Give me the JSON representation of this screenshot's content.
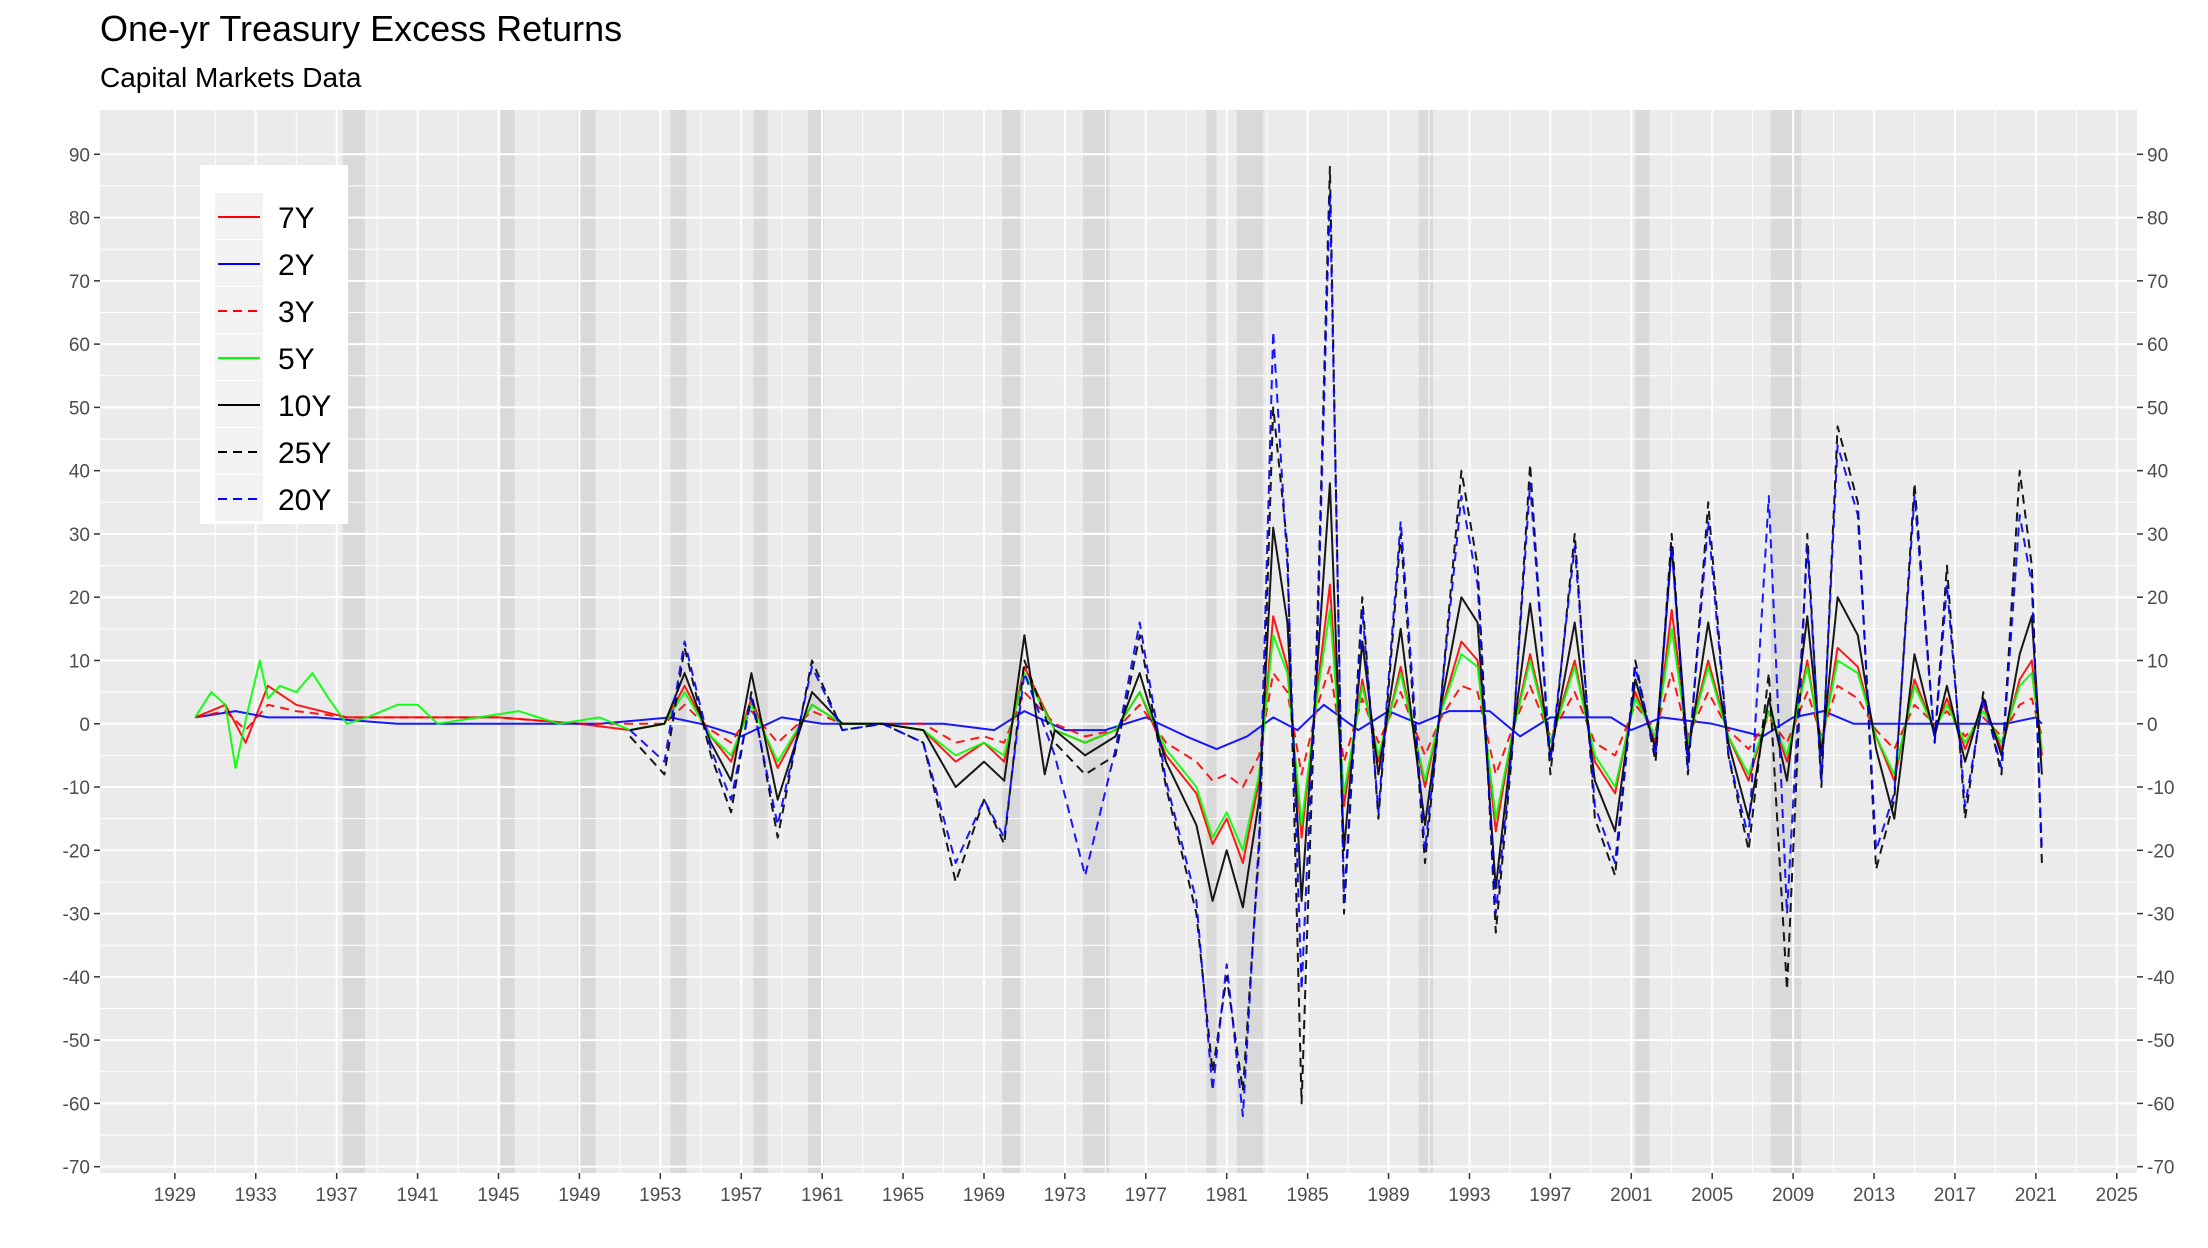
{
  "chart_data": {
    "type": "line",
    "title": "One-yr Treasury Excess Returns",
    "subtitle": "Capital Markets Data",
    "xlabel": "",
    "ylabel": "",
    "x_ticks": [
      "1929",
      "1933",
      "1937",
      "1941",
      "1945",
      "1949",
      "1953",
      "1957",
      "1961",
      "1965",
      "1969",
      "1973",
      "1977",
      "1981",
      "1985",
      "1989",
      "1993",
      "1997",
      "2001",
      "2005",
      "2009",
      "2013",
      "2017",
      "2021",
      "2025"
    ],
    "xlim": [
      1925.3,
      2026.0
    ],
    "y_ticks": [
      -70,
      -60,
      -50,
      -40,
      -30,
      -20,
      -10,
      0,
      10,
      20,
      30,
      40,
      50,
      60,
      70,
      80,
      90
    ],
    "ylim": [
      -71,
      97
    ],
    "grid": true,
    "secondary_y_axis": true,
    "legend_position": "top-left",
    "recession_shading": [
      [
        1937.3,
        1938.4
      ],
      [
        1945.1,
        1945.8
      ],
      [
        1948.9,
        1949.8
      ],
      [
        1953.5,
        1954.3
      ],
      [
        1957.6,
        1958.3
      ],
      [
        1960.3,
        1961.1
      ],
      [
        1969.9,
        1970.8
      ],
      [
        1973.9,
        1975.2
      ],
      [
        1980.0,
        1980.5
      ],
      [
        1981.5,
        1982.8
      ],
      [
        1990.5,
        1991.2
      ],
      [
        2001.2,
        2001.9
      ],
      [
        2007.9,
        2009.4
      ]
    ],
    "series": [
      {
        "name": "7Y",
        "color": "#ff0000",
        "dash": "solid",
        "x": [
          1930.0,
          1931.5,
          1932.5,
          1933.6,
          1935.0,
          1937.5,
          1940.0,
          1945.0,
          1949.0,
          1951.5,
          1953.2,
          1954.2,
          1955.5,
          1956.5,
          1957.5,
          1958.8,
          1960.5,
          1962.0,
          1964.0,
          1966.0,
          1967.6,
          1969.0,
          1970.0,
          1971.0,
          1972.5,
          1974.0,
          1975.5,
          1976.7,
          1978.0,
          1979.5,
          1980.3,
          1981.0,
          1981.8,
          1982.6,
          1983.3,
          1984.0,
          1984.7,
          1985.5,
          1986.1,
          1986.8,
          1987.7,
          1988.5,
          1989.6,
          1990.8,
          1991.6,
          1992.6,
          1993.4,
          1994.3,
          1995.1,
          1996.0,
          1997.0,
          1998.2,
          1999.2,
          2000.2,
          2001.2,
          2002.2,
          2003.0,
          2003.8,
          2004.8,
          2005.8,
          2006.8,
          2007.8,
          2008.7,
          2009.7,
          2010.4,
          2011.2,
          2012.2,
          2013.1,
          2014.0,
          2015.0,
          2016.0,
          2016.6,
          2017.5,
          2018.4,
          2019.3,
          2020.2,
          2020.8,
          2021.3
        ],
        "y": [
          1,
          3,
          -3,
          6,
          3,
          1,
          1,
          1,
          0,
          -1,
          0,
          6,
          -2,
          -6,
          4,
          -7,
          3,
          0,
          0,
          -1,
          -6,
          -3,
          -6,
          9,
          -1,
          -3,
          -1,
          5,
          -5,
          -11,
          -19,
          -15,
          -22,
          -9,
          17,
          9,
          -18,
          6,
          22,
          -13,
          7,
          -6,
          9,
          -10,
          2,
          13,
          10,
          -17,
          -2,
          11,
          -3,
          10,
          -6,
          -11,
          5,
          -3,
          18,
          -3,
          10,
          -2,
          -9,
          2,
          -6,
          10,
          -4,
          12,
          9,
          -2,
          -9,
          7,
          -1,
          4,
          -4,
          3,
          -4,
          7,
          10,
          -5
        ]
      },
      {
        "name": "2Y",
        "color": "#0000ff",
        "dash": "solid",
        "x": [
          1930.0,
          1932.0,
          1933.6,
          1936.0,
          1940.0,
          1945.0,
          1950.0,
          1953.5,
          1955.0,
          1957.0,
          1959.0,
          1961.0,
          1964.0,
          1967.0,
          1969.5,
          1971.0,
          1973.0,
          1975.0,
          1977.0,
          1979.0,
          1980.5,
          1982.0,
          1983.3,
          1984.5,
          1985.8,
          1987.5,
          1989.0,
          1990.5,
          1992.0,
          1994.0,
          1995.5,
          1997.0,
          2000.0,
          2001.0,
          2002.5,
          2005.0,
          2007.5,
          2009.0,
          2010.5,
          2012.0,
          2015.0,
          2018.0,
          2019.5,
          2021.0,
          2021.3
        ],
        "y": [
          1,
          2,
          1,
          1,
          0,
          0,
          0,
          1,
          0,
          -2,
          1,
          0,
          0,
          0,
          -1,
          2,
          -1,
          -1,
          1,
          -2,
          -4,
          -2,
          1,
          -1,
          3,
          -1,
          2,
          0,
          2,
          2,
          -2,
          1,
          1,
          -1,
          1,
          0,
          -2,
          1,
          2,
          0,
          0,
          0,
          0,
          1,
          0
        ]
      },
      {
        "name": "3Y",
        "color": "#ff0000",
        "dash": "dashed",
        "x": [
          1930.0,
          1931.5,
          1932.5,
          1933.6,
          1935.0,
          1937.5,
          1940.0,
          1945.0,
          1949.0,
          1951.5,
          1953.2,
          1954.2,
          1955.5,
          1956.5,
          1957.5,
          1958.8,
          1960.5,
          1962.0,
          1964.0,
          1966.0,
          1967.6,
          1969.0,
          1970.0,
          1971.0,
          1972.5,
          1974.0,
          1975.5,
          1976.7,
          1978.0,
          1979.5,
          1980.3,
          1981.0,
          1981.8,
          1982.6,
          1983.3,
          1984.0,
          1984.7,
          1985.5,
          1986.1,
          1986.8,
          1987.7,
          1988.5,
          1989.6,
          1990.8,
          1991.6,
          1992.6,
          1993.4,
          1994.3,
          1995.1,
          1996.0,
          1997.0,
          1998.2,
          1999.2,
          2000.2,
          2001.2,
          2002.2,
          2003.0,
          2003.8,
          2004.8,
          2005.8,
          2006.8,
          2007.8,
          2008.7,
          2009.7,
          2010.4,
          2011.2,
          2012.2,
          2013.1,
          2014.0,
          2015.0,
          2016.0,
          2016.6,
          2017.5,
          2018.4,
          2019.3,
          2020.2,
          2020.8,
          2021.3
        ],
        "y": [
          1,
          2,
          -1,
          3,
          2,
          1,
          1,
          1,
          0,
          0,
          0,
          3,
          -1,
          -3,
          2,
          -3,
          2,
          0,
          0,
          0,
          -3,
          -2,
          -3,
          5,
          0,
          -2,
          -1,
          3,
          -3,
          -6,
          -9,
          -8,
          -10,
          -5,
          8,
          5,
          -8,
          3,
          9,
          -6,
          4,
          -3,
          5,
          -5,
          1,
          6,
          5,
          -8,
          -1,
          6,
          -2,
          5,
          -3,
          -5,
          3,
          -1,
          8,
          -2,
          5,
          -1,
          -4,
          1,
          -3,
          5,
          -2,
          6,
          4,
          -1,
          -4,
          3,
          0,
          2,
          -2,
          1,
          -2,
          3,
          4,
          -2
        ]
      },
      {
        "name": "5Y",
        "color": "#00ff00",
        "dash": "solid",
        "x": [
          1930.0,
          1930.8,
          1931.5,
          1932.0,
          1932.6,
          1933.2,
          1933.6,
          1934.2,
          1935.0,
          1935.8,
          1936.6,
          1937.5,
          1938.5,
          1940.0,
          1941.0,
          1942.0,
          1944.0,
          1946.0,
          1948.0,
          1950.0,
          1951.5,
          1953.2,
          1954.2,
          1955.5,
          1956.5,
          1957.5,
          1958.8,
          1960.5,
          1962.0,
          1964.0,
          1966.0,
          1967.6,
          1969.0,
          1970.0,
          1971.0,
          1972.5,
          1974.0,
          1975.5,
          1976.7,
          1978.0,
          1979.5,
          1980.3,
          1981.0,
          1981.8,
          1982.6,
          1983.3,
          1984.0,
          1984.7,
          1985.5,
          1986.1,
          1986.8,
          1987.7,
          1988.5,
          1989.6,
          1990.8,
          1991.6,
          1992.6,
          1993.4,
          1994.3,
          1995.1,
          1996.0,
          1997.0,
          1998.2,
          1999.2,
          2000.2,
          2001.2,
          2002.2,
          2003.0,
          2003.8,
          2004.8,
          2005.8,
          2006.8,
          2007.8,
          2008.7,
          2009.7,
          2010.4,
          2011.2,
          2012.2,
          2013.1,
          2014.0,
          2015.0,
          2016.0,
          2016.6,
          2017.5,
          2018.4,
          2019.3,
          2020.2,
          2020.8,
          2021.3
        ],
        "y": [
          1,
          5,
          3,
          -7,
          2,
          10,
          4,
          6,
          5,
          8,
          4,
          0,
          1,
          3,
          3,
          0,
          1,
          2,
          0,
          1,
          -1,
          0,
          5,
          -2,
          -5,
          3,
          -6,
          3,
          0,
          0,
          -1,
          -5,
          -3,
          -5,
          8,
          -1,
          -3,
          -1,
          5,
          -4,
          -10,
          -18,
          -14,
          -20,
          -8,
          14,
          8,
          -16,
          5,
          18,
          -11,
          6,
          -5,
          8,
          -9,
          2,
          11,
          9,
          -15,
          -2,
          10,
          -3,
          9,
          -5,
          -10,
          4,
          -2,
          15,
          -3,
          9,
          -2,
          -8,
          2,
          -5,
          9,
          -3,
          10,
          8,
          -2,
          -8,
          6,
          -1,
          3,
          -3,
          2,
          -3,
          6,
          8,
          -4
        ]
      },
      {
        "name": "10Y",
        "color": "#000000",
        "dash": "solid",
        "x": [
          1951.5,
          1953.2,
          1954.2,
          1955.5,
          1956.5,
          1957.5,
          1958.8,
          1960.5,
          1962.0,
          1964.0,
          1966.0,
          1967.6,
          1969.0,
          1970.0,
          1971.0,
          1972.0,
          1972.5,
          1974.0,
          1975.5,
          1976.7,
          1978.0,
          1979.5,
          1980.3,
          1981.0,
          1981.8,
          1982.6,
          1983.3,
          1984.0,
          1984.7,
          1985.5,
          1986.1,
          1986.8,
          1987.7,
          1988.5,
          1989.6,
          1990.8,
          1991.6,
          1992.6,
          1993.4,
          1994.3,
          1995.1,
          1996.0,
          1997.0,
          1998.2,
          1999.2,
          2000.2,
          2001.2,
          2002.2,
          2003.0,
          2003.8,
          2004.8,
          2005.8,
          2006.8,
          2007.8,
          2008.7,
          2009.7,
          2010.4,
          2011.2,
          2012.2,
          2013.1,
          2014.0,
          2015.0,
          2016.0,
          2016.6,
          2017.5,
          2018.4,
          2019.3,
          2020.2,
          2020.8,
          2021.3
        ],
        "y": [
          -1,
          0,
          8,
          -3,
          -9,
          8,
          -12,
          5,
          0,
          0,
          -1,
          -10,
          -6,
          -9,
          14,
          -8,
          -1,
          -5,
          -2,
          8,
          -6,
          -16,
          -28,
          -20,
          -29,
          -12,
          31,
          16,
          -28,
          10,
          38,
          -20,
          13,
          -8,
          15,
          -16,
          3,
          20,
          16,
          -26,
          -3,
          19,
          -5,
          16,
          -9,
          -17,
          7,
          -4,
          28,
          -5,
          16,
          -3,
          -15,
          4,
          -9,
          17,
          -5,
          20,
          14,
          -4,
          -15,
          11,
          -2,
          6,
          -6,
          4,
          -5,
          11,
          17,
          -8
        ]
      },
      {
        "name": "25Y",
        "color": "#000000",
        "dash": "dashed",
        "x": [
          1951.5,
          1953.2,
          1954.2,
          1955.5,
          1956.5,
          1957.5,
          1958.8,
          1960.5,
          1962.0,
          1964.0,
          1966.0,
          1967.6,
          1969.0,
          1970.0,
          1971.0,
          1972.5,
          1974.0,
          1975.5,
          1976.7,
          1978.0,
          1979.5,
          1980.3,
          1981.0,
          1981.8,
          1982.6,
          1983.3,
          1984.0,
          1984.7,
          1985.5,
          1986.1,
          1986.8,
          1987.7,
          1988.5,
          1989.6,
          1990.8,
          1991.6,
          1992.6,
          1993.4,
          1994.3,
          1995.1,
          1996.0,
          1997.0,
          1998.2,
          1999.2,
          2000.2,
          2001.2,
          2002.2,
          2003.0,
          2003.8,
          2004.8,
          2005.8,
          2006.8,
          2007.8,
          2008.7,
          2009.7,
          2010.4,
          2011.2,
          2012.2,
          2013.1,
          2014.0,
          2015.0,
          2016.0,
          2016.6,
          2017.5,
          2018.4,
          2019.3,
          2020.2,
          2020.8,
          2021.3
        ],
        "y": [
          -2,
          -8,
          12,
          -5,
          -14,
          5,
          -18,
          10,
          -1,
          0,
          -3,
          -25,
          -12,
          -19,
          10,
          -3,
          -8,
          -5,
          14,
          -10,
          -30,
          -55,
          -40,
          -58,
          -20,
          50,
          28,
          -60,
          18,
          88,
          -30,
          20,
          -15,
          30,
          -22,
          4,
          40,
          25,
          -33,
          -5,
          41,
          -8,
          30,
          -15,
          -24,
          10,
          -6,
          30,
          -8,
          35,
          -5,
          -20,
          8,
          -42,
          30,
          -10,
          47,
          35,
          -23,
          -12,
          38,
          -3,
          25,
          -15,
          5,
          -8,
          40,
          25,
          -22
        ]
      },
      {
        "name": "20Y",
        "color": "#0000ff",
        "dash": "dashed",
        "x": [
          1951.5,
          1953.2,
          1954.2,
          1955.5,
          1956.5,
          1957.5,
          1958.8,
          1960.5,
          1962.0,
          1964.0,
          1966.0,
          1967.6,
          1969.0,
          1970.0,
          1971.0,
          1972.5,
          1974.0,
          1975.5,
          1976.7,
          1978.0,
          1979.5,
          1980.3,
          1981.0,
          1981.8,
          1982.6,
          1983.3,
          1984.0,
          1984.7,
          1985.5,
          1986.1,
          1986.8,
          1987.7,
          1988.5,
          1989.6,
          1990.8,
          1991.6,
          1992.6,
          1993.4,
          1994.3,
          1995.1,
          1996.0,
          1997.0,
          1998.2,
          1999.2,
          2000.2,
          2001.2,
          2002.2,
          2003.0,
          2003.8,
          2004.8,
          2005.8,
          2006.8,
          2007.8,
          2008.7,
          2009.7,
          2010.4,
          2011.2,
          2012.2,
          2013.1,
          2014.0,
          2015.0,
          2016.0,
          2016.6,
          2017.5,
          2018.4,
          2019.3,
          2020.2,
          2020.8,
          2021.3
        ],
        "y": [
          -1,
          -6,
          13,
          -4,
          -12,
          4,
          -16,
          9,
          -1,
          0,
          -3,
          -22,
          -12,
          -18,
          8,
          -5,
          -24,
          -4,
          16,
          -9,
          -28,
          -58,
          -38,
          -62,
          -18,
          62,
          25,
          -42,
          15,
          84,
          -28,
          18,
          -14,
          32,
          -20,
          4,
          36,
          22,
          -30,
          -4,
          38,
          -6,
          28,
          -13,
          -22,
          9,
          -5,
          28,
          -7,
          32,
          -5,
          -18,
          36,
          -30,
          28,
          -9,
          44,
          33,
          -20,
          -11,
          36,
          -3,
          22,
          -13,
          4,
          -7,
          33,
          22,
          -20
        ]
      }
    ]
  }
}
